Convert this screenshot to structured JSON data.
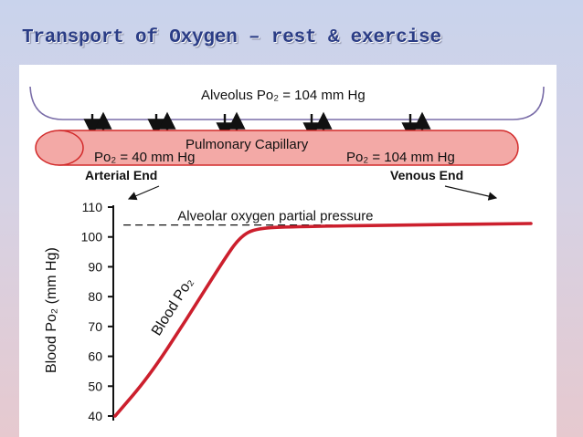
{
  "slide": {
    "title": "Transport of Oxygen – rest & exercise"
  },
  "diagram": {
    "alveolus_label": "Alveolus Po₂ = 104 mm Hg",
    "capillary_label": "Pulmonary Capillary",
    "arterial_po2": "Po₂ = 40 mm Hg",
    "venous_po2": "Po₂ = 104 mm Hg",
    "arterial_end": "Arterial End",
    "venous_end": "Venous End",
    "alveolar_line_label": "Alveolar oxygen partial pressure",
    "curve_label": "Blood Po₂",
    "y_axis_label": "Blood Po₂ (mm Hg)"
  },
  "chart_data": {
    "type": "line",
    "ylabel": "Blood Po₂ (mm Hg)",
    "ylim": [
      40,
      110
    ],
    "yticks": [
      40,
      50,
      60,
      70,
      80,
      90,
      100,
      110
    ],
    "reference_line": {
      "label": "Alveolar oxygen partial pressure",
      "value": 104
    },
    "series": [
      {
        "name": "Blood Po₂",
        "color": "#cc1f2d",
        "points": [
          [
            0,
            40
          ],
          [
            0.08,
            53
          ],
          [
            0.17,
            72
          ],
          [
            0.26,
            92
          ],
          [
            0.3,
            100
          ],
          [
            0.34,
            103
          ],
          [
            0.45,
            103.5
          ],
          [
            0.7,
            104
          ],
          [
            1.0,
            104.5
          ]
        ]
      }
    ]
  },
  "colors": {
    "capillary_fill": "#f3a9a6",
    "capillary_stroke": "#d22a2a",
    "curve": "#cc1f2d",
    "title": "#2b3d86"
  }
}
